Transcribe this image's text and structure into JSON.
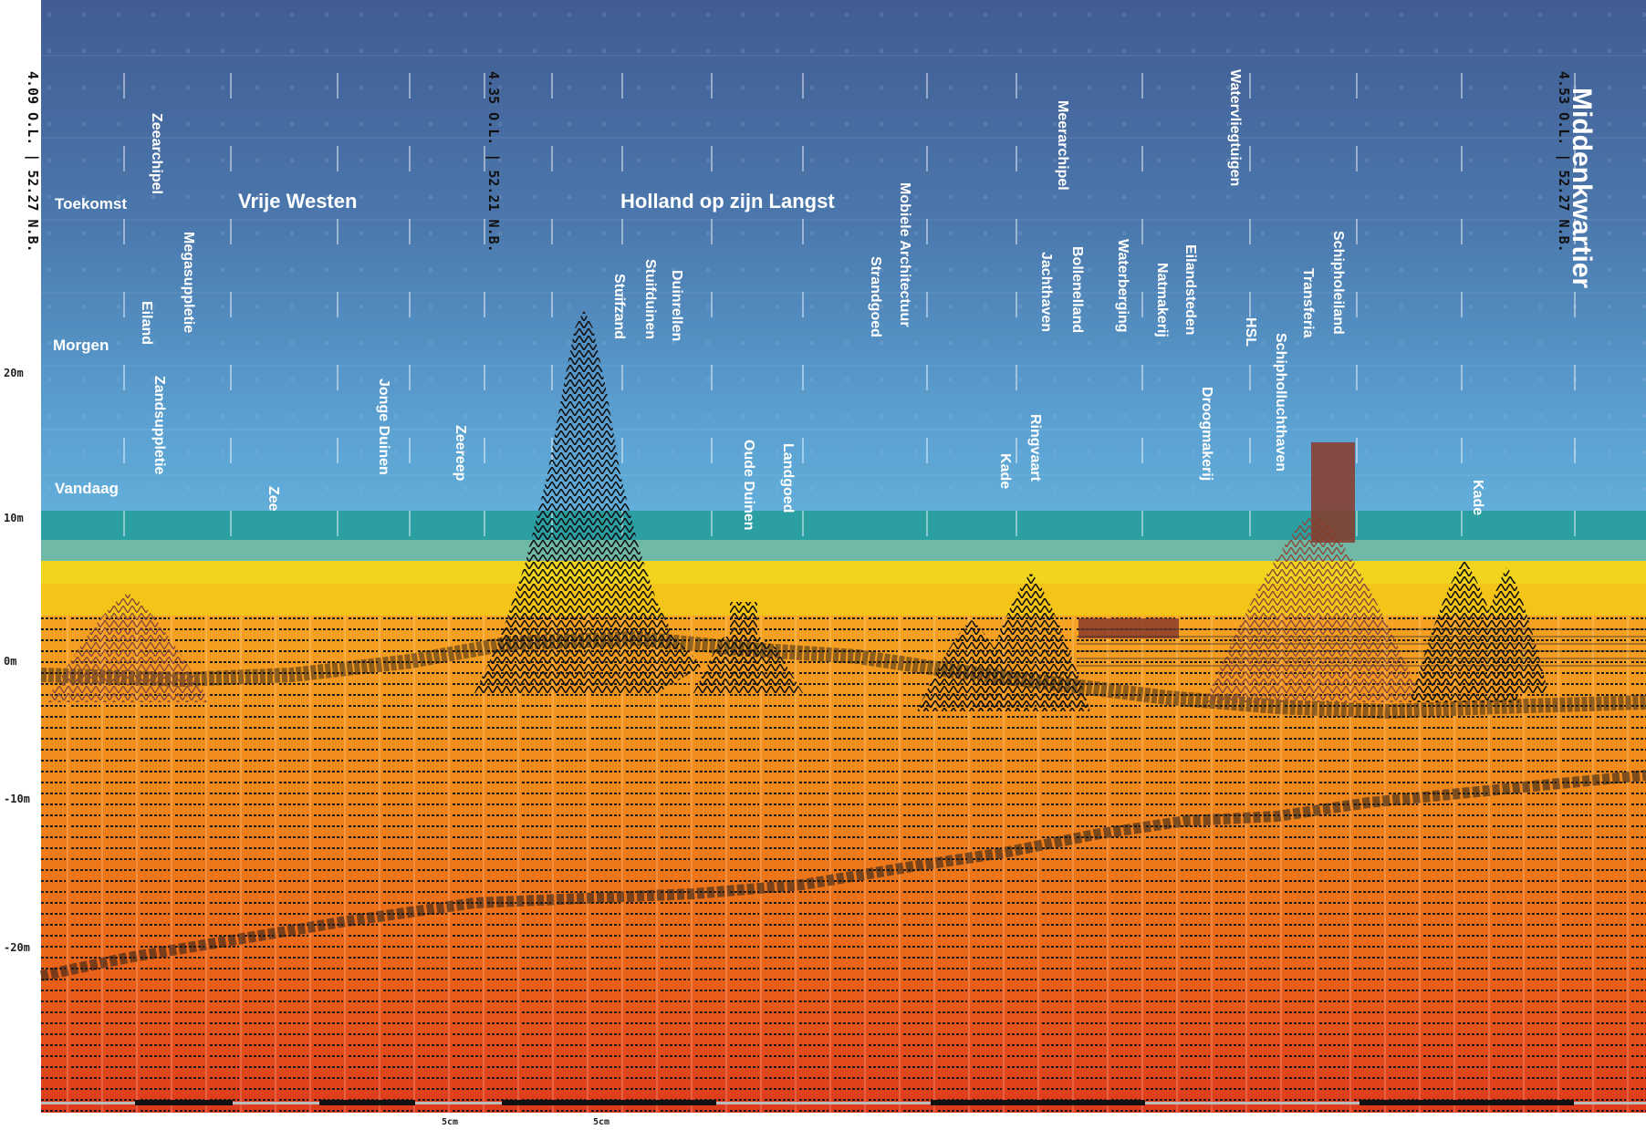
{
  "title": "Middenkwartier",
  "period_labels": [
    "Toekomst",
    "Morgen",
    "Vandaag"
  ],
  "region_labels": [
    "Vrije Westen",
    "Holland op zijn Langst"
  ],
  "coordinates": [
    "4.09 O.L. | 52.27 N.B.",
    "4.35 O.L. | 52.21 N.B.",
    "4.53 O.L. | 52.27 N.B."
  ],
  "depth_axis": [
    "20m",
    "10m",
    "0m",
    "-10m",
    "-20m"
  ],
  "scale_labels": [
    "5cm",
    "5cm"
  ],
  "colors": {
    "sky_top": "#3f5f95",
    "sky_bottom": "#62b7df",
    "water_band": "#2c9fa3",
    "sand_yellow": "#f0d21e",
    "earth_orange": "#f08a18",
    "deep_red": "#e0401c",
    "hatch_dark": "#1a1a1a",
    "brick": "#8a3a2a"
  },
  "labels": {
    "zeearchipel": "Zeearchipel",
    "megasuppletie": "Megasuppletie",
    "eiland": "Eiland",
    "zandsuppletie": "Zandsuppletie",
    "zee": "Zee",
    "jonge_duinen": "Jonge Duinen",
    "zeereep": "Zeereep",
    "stuifzand": "Stuifzand",
    "stuifduinen": "Stuifduinen",
    "duinrellen": "Duinrellen",
    "oude_duinen": "Oude Duinen",
    "landgoed": "Landgoed",
    "mobiele_architectuur": "Mobiele Architectuur",
    "strandgoed": "Strandgoed",
    "meerarchipel": "Meerarchipel",
    "jachthaven": "Jachthaven",
    "ringvaart": "Ringvaart",
    "kade_1": "Kade",
    "bollenelland": "Bollenelland",
    "waterberging": "Waterberging",
    "natmakerij": "Natmakerij",
    "eilandsteden": "Eilandsteden",
    "droogmakerij": "Droogmakerij",
    "watervliegtuigen": "Watervliegtuigen",
    "hsl": "HSL",
    "schipholluchthaven": "Schipholluchthaven",
    "transferia": "Transferia",
    "schipholeiland": "Schipholeiland",
    "kade_2": "Kade"
  }
}
